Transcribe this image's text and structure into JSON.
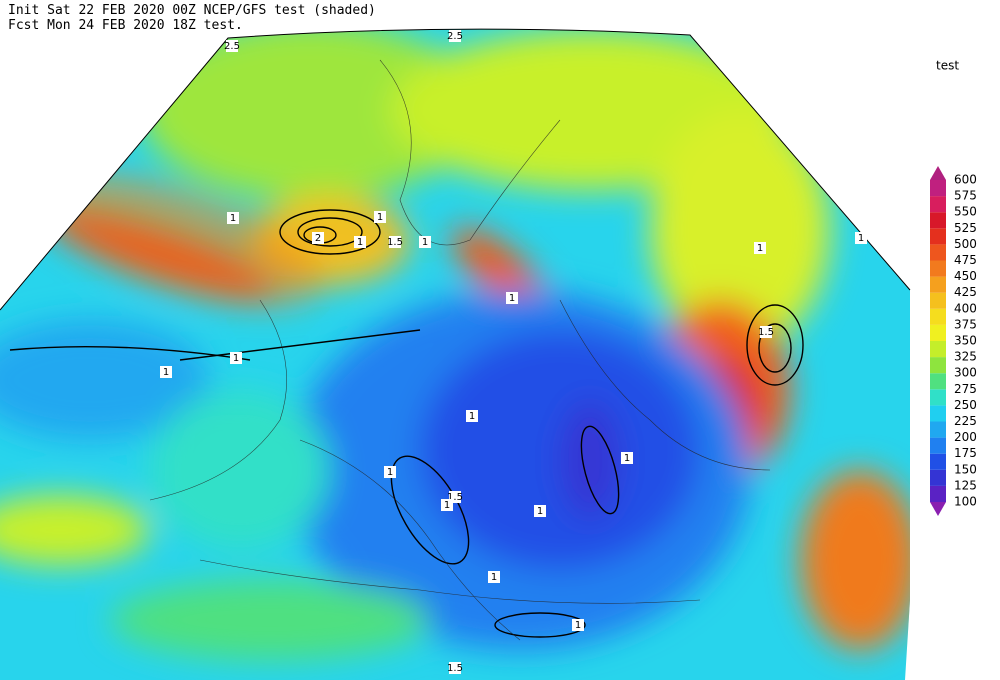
{
  "header": {
    "line1": "Init  Sat 22 FEB 2020 00Z  NCEP/GFS test (shaded)",
    "line2": "Fcst Mon 24 FEB 2020 18Z  test."
  },
  "legend_title": "test",
  "colorbar": {
    "levels": [
      100,
      125,
      150,
      175,
      200,
      225,
      250,
      275,
      300,
      325,
      350,
      375,
      400,
      425,
      450,
      475,
      500,
      525,
      550,
      575,
      600
    ],
    "colors": [
      "#8a1fb0",
      "#5a22c4",
      "#3434d4",
      "#2050e6",
      "#2080f0",
      "#20a8f0",
      "#20cff0",
      "#30e0c8",
      "#50e080",
      "#8ee43e",
      "#c4ee2a",
      "#f0f020",
      "#f5dd1e",
      "#f5c01e",
      "#f5a01e",
      "#f27a1e",
      "#ee561e",
      "#e4301e",
      "#d8182a",
      "#d81e5e",
      "#c0207f",
      "#b0207f"
    ]
  },
  "contours": [
    "2.5",
    "2.5",
    "1",
    "1",
    "2",
    "1.5",
    "1",
    "1",
    "1",
    "1",
    "1",
    "1",
    "1.5",
    "1",
    "1",
    "1.5",
    "1",
    "1",
    "1",
    "1",
    "1",
    "1",
    "1.5"
  ]
}
